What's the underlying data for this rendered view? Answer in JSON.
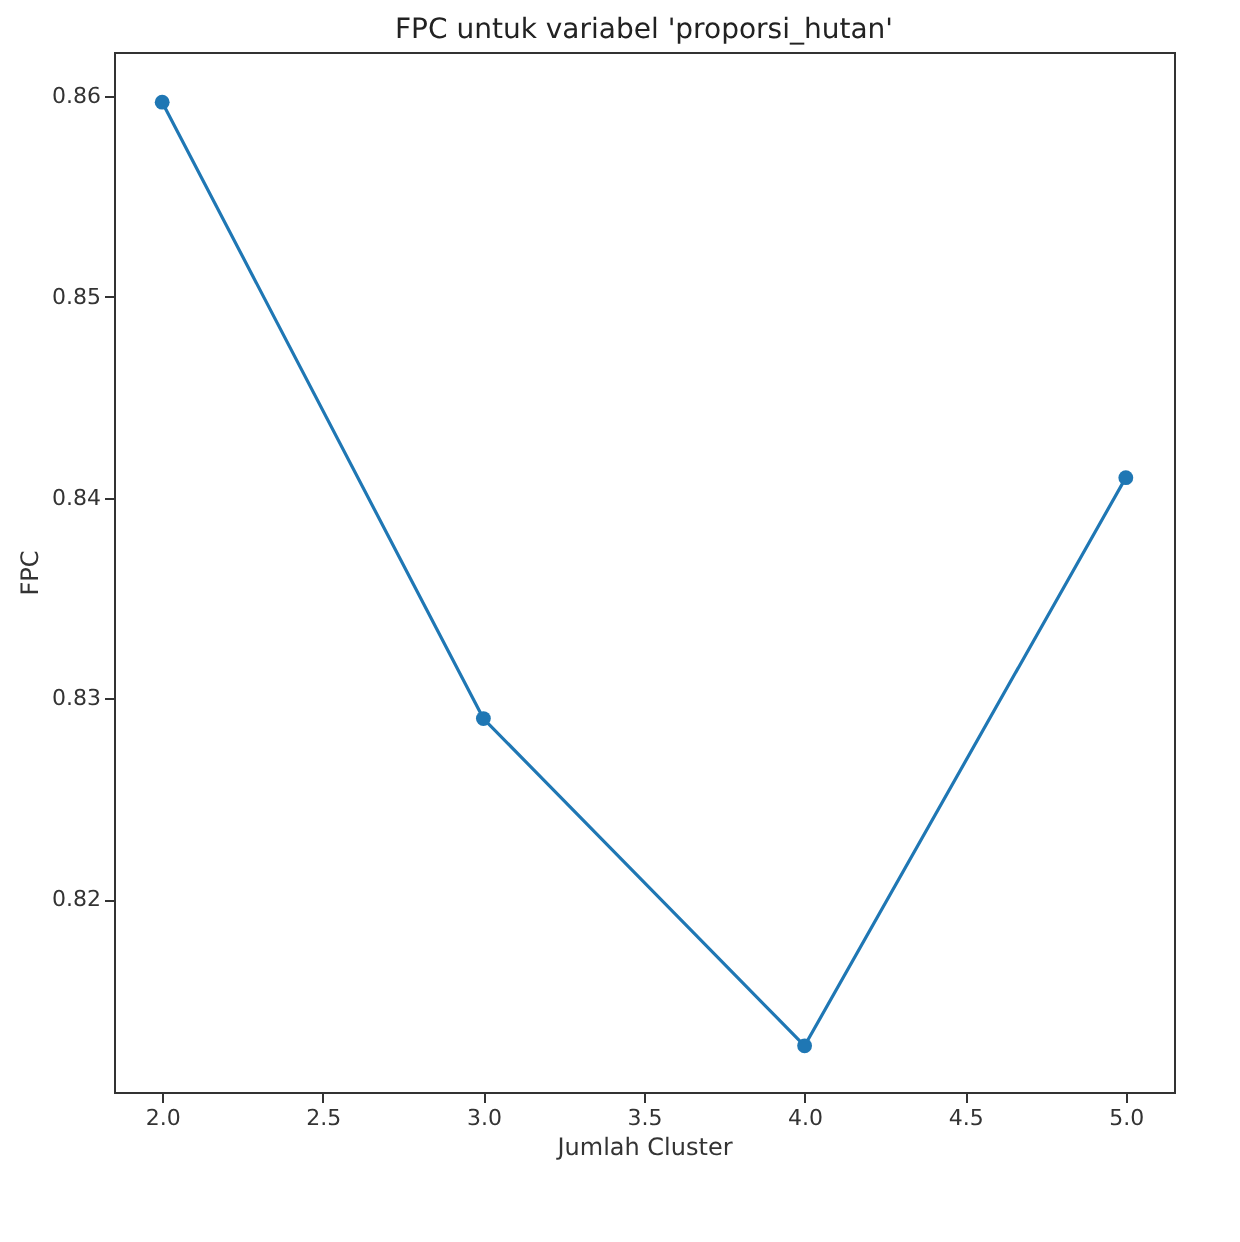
{
  "chart_data": {
    "type": "line",
    "title": "FPC untuk variabel 'proporsi_hutan'",
    "xlabel": "Jumlah Cluster",
    "ylabel": "FPC",
    "x": [
      2.0,
      3.0,
      4.0,
      5.0
    ],
    "series": [
      {
        "color": "#1f77b4",
        "values": [
          0.8597,
          0.829,
          0.8127,
          0.841
        ]
      }
    ],
    "xlim": [
      1.85,
      5.15
    ],
    "xticks": [
      {
        "value": 2,
        "label": "2.0"
      },
      {
        "value": 2.5,
        "label": "2.5"
      },
      {
        "value": 3,
        "label": "3.0"
      },
      {
        "value": 3.5,
        "label": "3.5"
      },
      {
        "value": 4,
        "label": "4.0"
      },
      {
        "value": 4.5,
        "label": "4.5"
      },
      {
        "value": 5,
        "label": "5.0"
      }
    ],
    "ylim": [
      0.8104,
      0.8622
    ],
    "yticks": [
      0.82,
      0.83,
      0.84,
      0.85,
      0.86
    ],
    "marker": "circle",
    "grid": false
  }
}
